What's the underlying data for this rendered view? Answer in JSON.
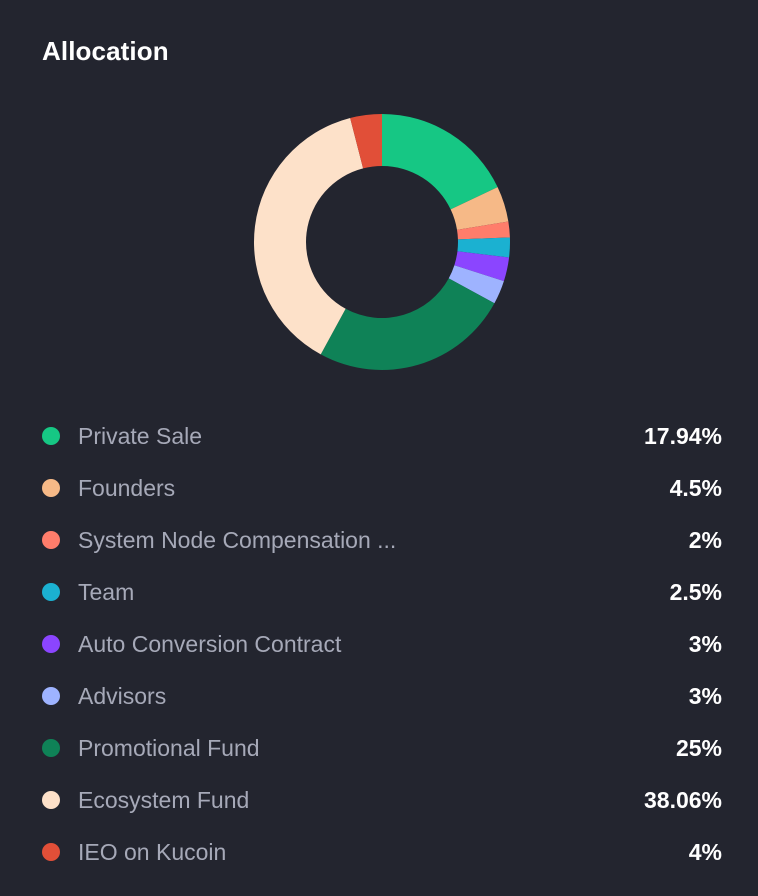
{
  "header": {
    "title": "Allocation"
  },
  "chart_data": {
    "type": "pie",
    "title": "Allocation",
    "unit": "%",
    "slices": [
      {
        "label": "Private Sale",
        "value": 17.94,
        "display": "17.94%",
        "color": "#16c784"
      },
      {
        "label": "Founders",
        "value": 4.5,
        "display": "4.5%",
        "color": "#f6b987"
      },
      {
        "label": "System Node Compensation ...",
        "value": 2,
        "display": "2%",
        "color": "#ff7d6b"
      },
      {
        "label": "Team",
        "value": 2.5,
        "display": "2.5%",
        "color": "#1bb1d1"
      },
      {
        "label": "Auto Conversion Contract",
        "value": 3,
        "display": "3%",
        "color": "#8b45ff"
      },
      {
        "label": "Advisors",
        "value": 3,
        "display": "3%",
        "color": "#9eb3ff"
      },
      {
        "label": "Promotional Fund",
        "value": 25,
        "display": "25%",
        "color": "#0f8257"
      },
      {
        "label": "Ecosystem Fund",
        "value": 38.06,
        "display": "38.06%",
        "color": "#fde1c9"
      },
      {
        "label": "IEO on Kucoin",
        "value": 4,
        "display": "4%",
        "color": "#e14f38"
      }
    ]
  }
}
